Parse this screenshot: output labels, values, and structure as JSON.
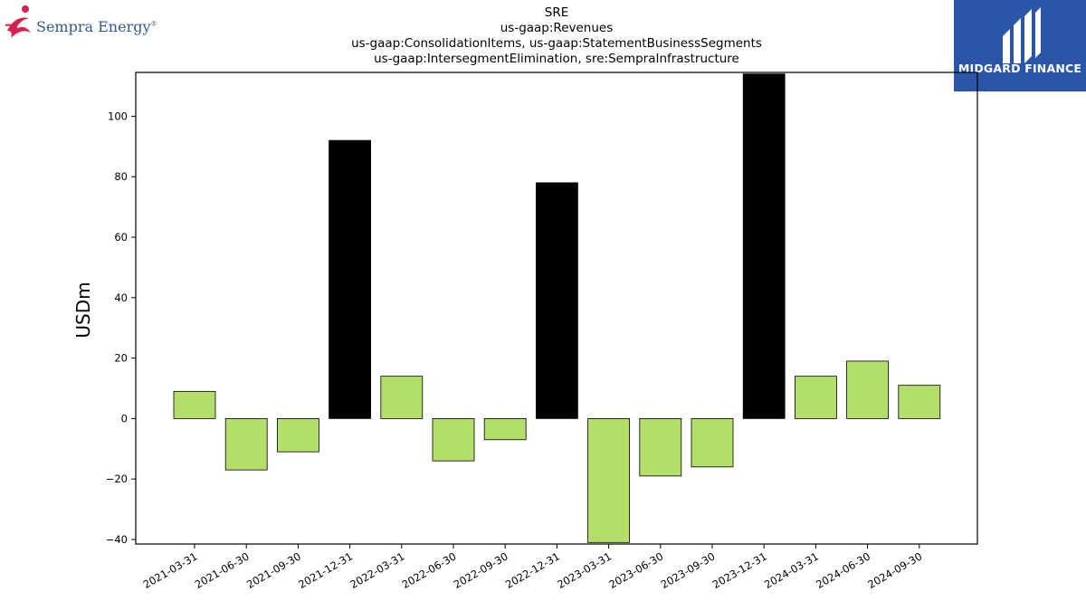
{
  "logos": {
    "left_text": "Sempra Energy",
    "left_mark": "®",
    "right_text": "MIDGARD FINANCE",
    "right_color": "#2b56a7"
  },
  "chart_data": {
    "type": "bar",
    "title_lines": [
      "SRE",
      "us-gaap:Revenues",
      "us-gaap:ConsolidationItems, us-gaap:StatementBusinessSegments",
      "us-gaap:IntersegmentElimination, sre:SempraInfrastructure"
    ],
    "ylabel": "USDm",
    "xlabel": "",
    "categories": [
      "2021-03-31",
      "2021-06-30",
      "2021-09-30",
      "2021-12-31",
      "2022-03-31",
      "2022-06-30",
      "2022-09-30",
      "2022-12-31",
      "2023-03-31",
      "2023-06-30",
      "2023-09-30",
      "2023-12-31",
      "2024-03-31",
      "2024-06-30",
      "2024-09-30"
    ],
    "values": [
      9,
      -17,
      -11,
      92,
      14,
      -14,
      -7,
      78,
      -41,
      -19,
      -16,
      114,
      14,
      19,
      11
    ],
    "bar_colors": [
      "#b3de69",
      "#b3de69",
      "#b3de69",
      "#000000",
      "#b3de69",
      "#b3de69",
      "#b3de69",
      "#000000",
      "#b3de69",
      "#b3de69",
      "#b3de69",
      "#000000",
      "#b3de69",
      "#b3de69",
      "#b3de69"
    ],
    "yticks": [
      -40,
      -20,
      0,
      20,
      40,
      60,
      80,
      100
    ],
    "ylim": [
      -41.5,
      114.5
    ],
    "grid": false,
    "legend": "none"
  }
}
